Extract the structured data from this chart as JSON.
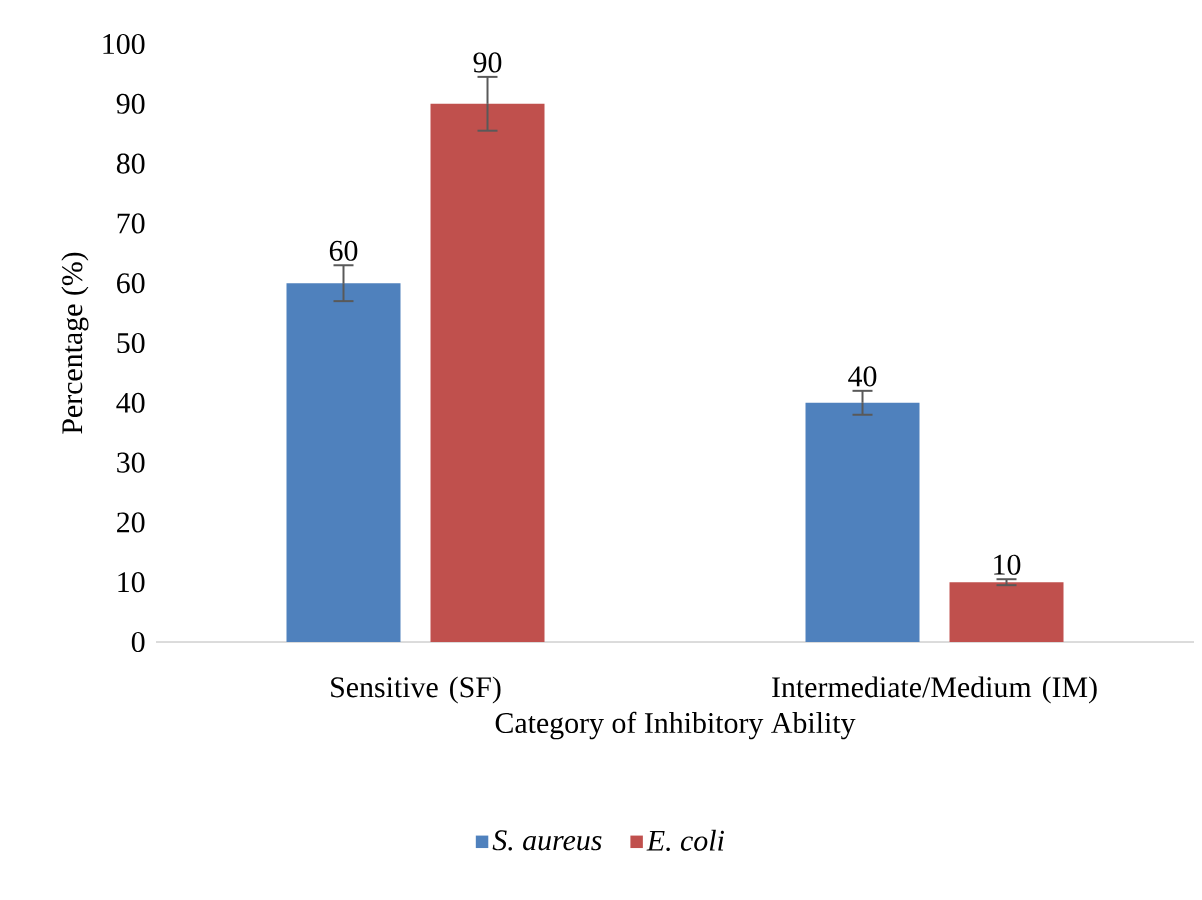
{
  "chart_data": {
    "type": "bar",
    "xlabel": "Category of Inhibitory Ability",
    "ylabel": "Percentage (%)",
    "categories": [
      "Sensitive (SF)",
      "Intermediate/Medium (IM)"
    ],
    "series": [
      {
        "name": "S. aureus",
        "color": "#4f81bd",
        "values": [
          60,
          40
        ],
        "errors": [
          3,
          2
        ]
      },
      {
        "name": "E. coli",
        "color": "#c0504d",
        "values": [
          90,
          10
        ],
        "errors": [
          4.5,
          0.5
        ]
      }
    ],
    "ylim": [
      0,
      100
    ],
    "yticks": [
      0,
      10,
      20,
      30,
      40,
      50,
      60,
      70,
      80,
      90,
      100
    ],
    "data_labels": true,
    "legend": "bottom",
    "grid": false
  }
}
